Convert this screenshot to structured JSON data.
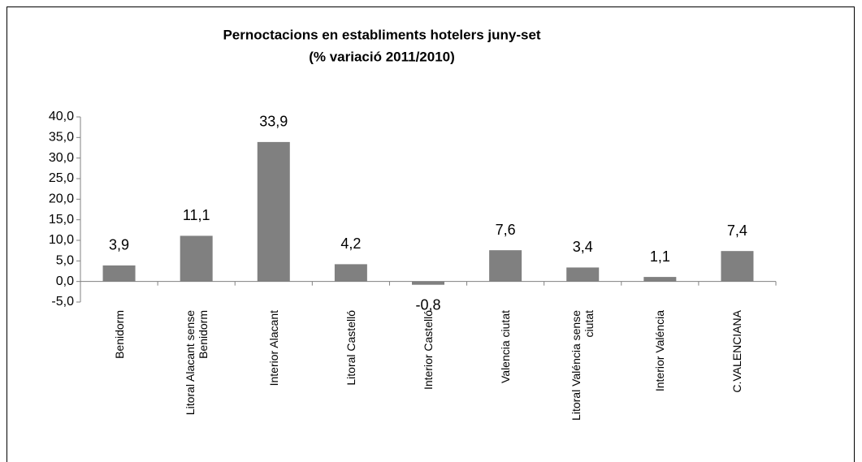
{
  "chart_data": {
    "type": "bar",
    "title": "Pernoctacions en establiments hotelers juny-set",
    "subtitle": "(% variació 2011/2010)",
    "categories": [
      "Benidorm",
      "Litoral Alacant sense Benidorm",
      "Interior Alacant",
      "Litoral Castelló",
      "Interior Castelló",
      "Valencia ciutat",
      "Litoral Valéncia sense ciutat",
      "Interior Valéncia",
      "C.VALENCIANA"
    ],
    "values": [
      3.9,
      11.1,
      33.9,
      4.2,
      -0.8,
      7.6,
      3.4,
      1.1,
      7.4
    ],
    "value_labels": [
      "3,9",
      "11,1",
      "33,9",
      "4,2",
      "-0,8",
      "7,6",
      "3,4",
      "1,1",
      "7,4"
    ],
    "color": "#808080",
    "ylim": [
      -5,
      40
    ],
    "yticks": [
      {
        "value": -5,
        "label": "-5,0"
      },
      {
        "value": 0,
        "label": "0,0"
      },
      {
        "value": 5,
        "label": "5,0"
      },
      {
        "value": 10,
        "label": "10,0"
      },
      {
        "value": 15,
        "label": "15,0"
      },
      {
        "value": 20,
        "label": "20,0"
      },
      {
        "value": 25,
        "label": "25,0"
      },
      {
        "value": 30,
        "label": "30,0"
      },
      {
        "value": 35,
        "label": "35,0"
      },
      {
        "value": 40,
        "label": "40,0"
      }
    ],
    "grid": false
  }
}
